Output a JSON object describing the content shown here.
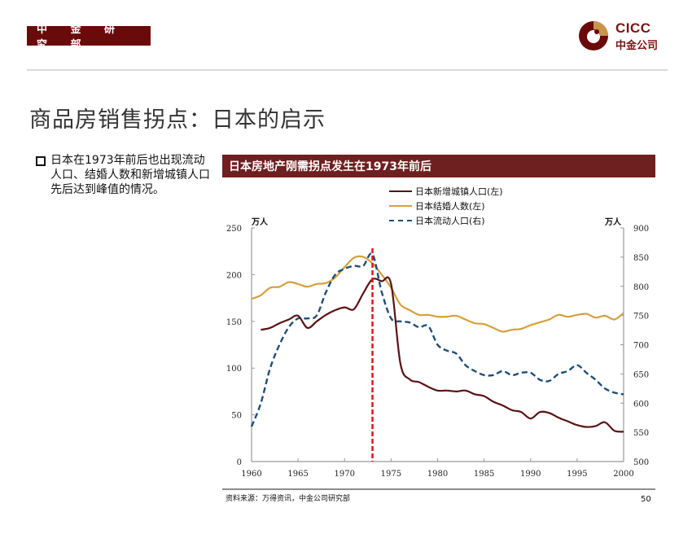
{
  "header": {
    "department": "中 金 研 究 部",
    "logo_text_en": "CICC",
    "logo_text_cn": "中金公司",
    "brand_color": "#6b0a0a",
    "logo_gold": "#c9954c"
  },
  "title": "商品房销售拐点：日本的启示",
  "bullet": {
    "icon": "square-bullet-icon",
    "text": "日本在1973年前后也出现流动人口、结婚人数和新增城镇人口先后达到峰值的情况。"
  },
  "chart_header": "日本房地产刚需拐点发生在1973年前后",
  "source": "资料来源：万得资讯，中金公司研究部",
  "page_number": "50",
  "chart_data": {
    "type": "line",
    "title": "日本房地产刚需拐点发生在1973年前后",
    "x": [
      1960,
      1961,
      1962,
      1963,
      1964,
      1965,
      1966,
      1967,
      1968,
      1969,
      1970,
      1971,
      1972,
      1973,
      1974,
      1975,
      1976,
      1977,
      1978,
      1979,
      1980,
      1981,
      1982,
      1983,
      1984,
      1985,
      1986,
      1987,
      1988,
      1989,
      1990,
      1991,
      1992,
      1993,
      1994,
      1995,
      1996,
      1997,
      1998,
      1999,
      2000
    ],
    "xlim": [
      1960,
      2000
    ],
    "xticks": [
      "1960",
      "1965",
      "1970",
      "1975",
      "1980",
      "1985",
      "1990",
      "1995",
      "2000"
    ],
    "y_left": {
      "label": "万人",
      "lim": [
        0,
        250
      ],
      "ticks": [
        "0",
        "50",
        "100",
        "150",
        "200",
        "250"
      ]
    },
    "y_right": {
      "label": "万人",
      "lim": [
        500,
        900
      ],
      "ticks": [
        "500",
        "550",
        "600",
        "650",
        "700",
        "750",
        "800",
        "850",
        "900"
      ]
    },
    "series": [
      {
        "name": "日本新增城镇人口(左)",
        "axis": "left",
        "color": "#5a1212",
        "style": "solid",
        "values": [
          null,
          141,
          143,
          148,
          152,
          156,
          143,
          150,
          157,
          162,
          165,
          163,
          180,
          195,
          193,
          190,
          105,
          88,
          85,
          80,
          76,
          76,
          75,
          76,
          72,
          70,
          64,
          60,
          55,
          53,
          46,
          53,
          52,
          47,
          43,
          39,
          37,
          38,
          42,
          33,
          32
        ]
      },
      {
        "name": "日本结婚人数(左)",
        "axis": "left",
        "color": "#d4a03c",
        "style": "solid",
        "values": [
          174,
          178,
          186,
          187,
          192,
          190,
          187,
          190,
          191,
          197,
          208,
          218,
          219,
          212,
          200,
          186,
          168,
          162,
          157,
          157,
          155,
          155,
          156,
          152,
          148,
          147,
          143,
          139,
          141,
          142,
          146,
          149,
          152,
          157,
          155,
          157,
          158,
          154,
          156,
          152,
          159
        ]
      },
      {
        "name": "日本流动人口(右)",
        "axis": "right",
        "color": "#1f4e79",
        "style": "dashed",
        "values": [
          560,
          600,
          660,
          700,
          730,
          745,
          745,
          750,
          790,
          820,
          830,
          835,
          835,
          855,
          790,
          745,
          740,
          738,
          730,
          732,
          700,
          690,
          685,
          665,
          655,
          648,
          648,
          655,
          648,
          652,
          652,
          640,
          638,
          650,
          655,
          665,
          652,
          640,
          625,
          618,
          615
        ]
      }
    ],
    "annotations": [
      {
        "type": "vline",
        "x": 1973,
        "color": "#e0141e",
        "style": "dashed"
      }
    ],
    "legend": "top-center",
    "grid": false
  }
}
